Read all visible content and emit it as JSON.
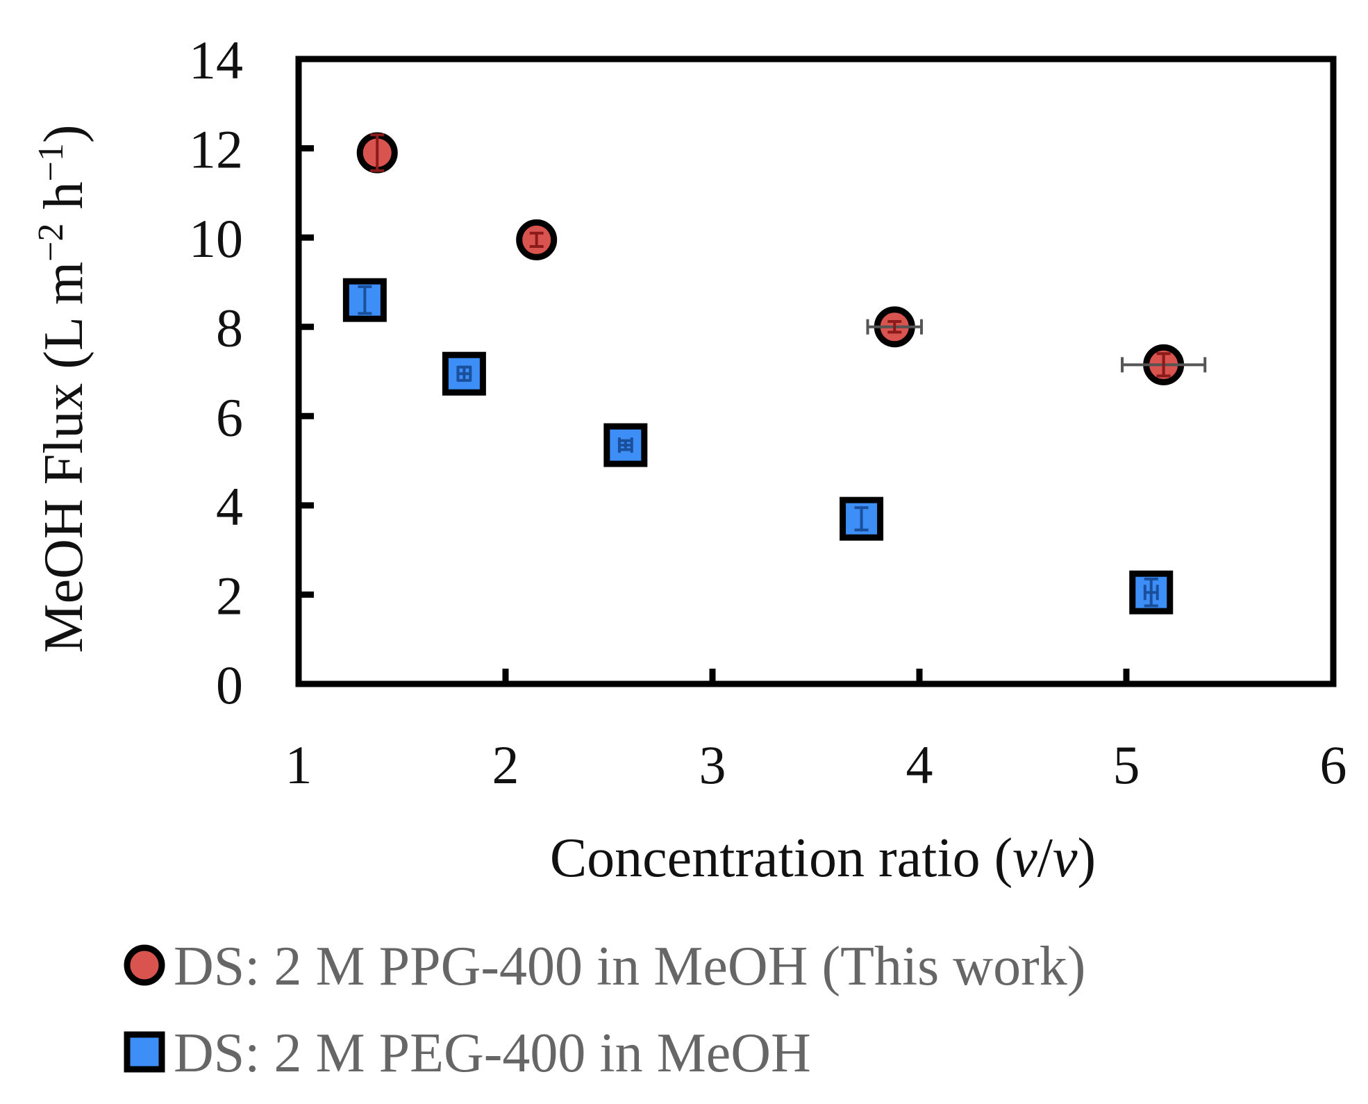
{
  "chart_data": {
    "type": "scatter",
    "title": "",
    "xlabel": "Concentration ratio (v/v)",
    "xlabel_parts": [
      "Concentration ratio (",
      "v",
      "/",
      "v",
      ")"
    ],
    "ylabel": "MeOH Flux (L m−2 h−1)",
    "ylabel_parts": [
      "MeOH Flux (L m",
      "−2",
      " h",
      "−1",
      ")"
    ],
    "xlim": [
      1,
      6
    ],
    "ylim": [
      0,
      14
    ],
    "xticks": [
      1,
      2,
      3,
      4,
      5,
      6
    ],
    "yticks": [
      0,
      2,
      4,
      6,
      8,
      10,
      12,
      14
    ],
    "grid": false,
    "legend_position": "bottom",
    "series": [
      {
        "name": "DS: 2 M PPG-400 in MeOH (This work)",
        "marker": "circle",
        "color": "#d9534f",
        "error_color": "#8b1a1a",
        "points": [
          {
            "x": 1.38,
            "y": 11.9,
            "xerr": 0.0,
            "yerr": 0.4
          },
          {
            "x": 2.15,
            "y": 9.95,
            "xerr": 0.0,
            "yerr": 0.15
          },
          {
            "x": 3.88,
            "y": 8.0,
            "xerr": 0.13,
            "yerr": 0.12
          },
          {
            "x": 5.18,
            "y": 7.15,
            "xerr": 0.2,
            "yerr": 0.25
          }
        ]
      },
      {
        "name": "DS: 2 M PEG-400 in MeOH",
        "marker": "square",
        "color": "#3d8ef7",
        "error_color": "#1a4f9c",
        "points": [
          {
            "x": 1.32,
            "y": 8.6,
            "xerr": 0.0,
            "yerr": 0.3
          },
          {
            "x": 1.8,
            "y": 6.95,
            "xerr": 0.03,
            "yerr": 0.15
          },
          {
            "x": 2.58,
            "y": 5.35,
            "xerr": 0.03,
            "yerr": 0.1
          },
          {
            "x": 3.72,
            "y": 3.7,
            "xerr": 0.0,
            "yerr": 0.25
          },
          {
            "x": 5.12,
            "y": 2.05,
            "xerr": 0.03,
            "yerr": 0.3
          }
        ]
      }
    ]
  },
  "colors": {
    "axis": "#000000",
    "legend_text": "#666666"
  }
}
